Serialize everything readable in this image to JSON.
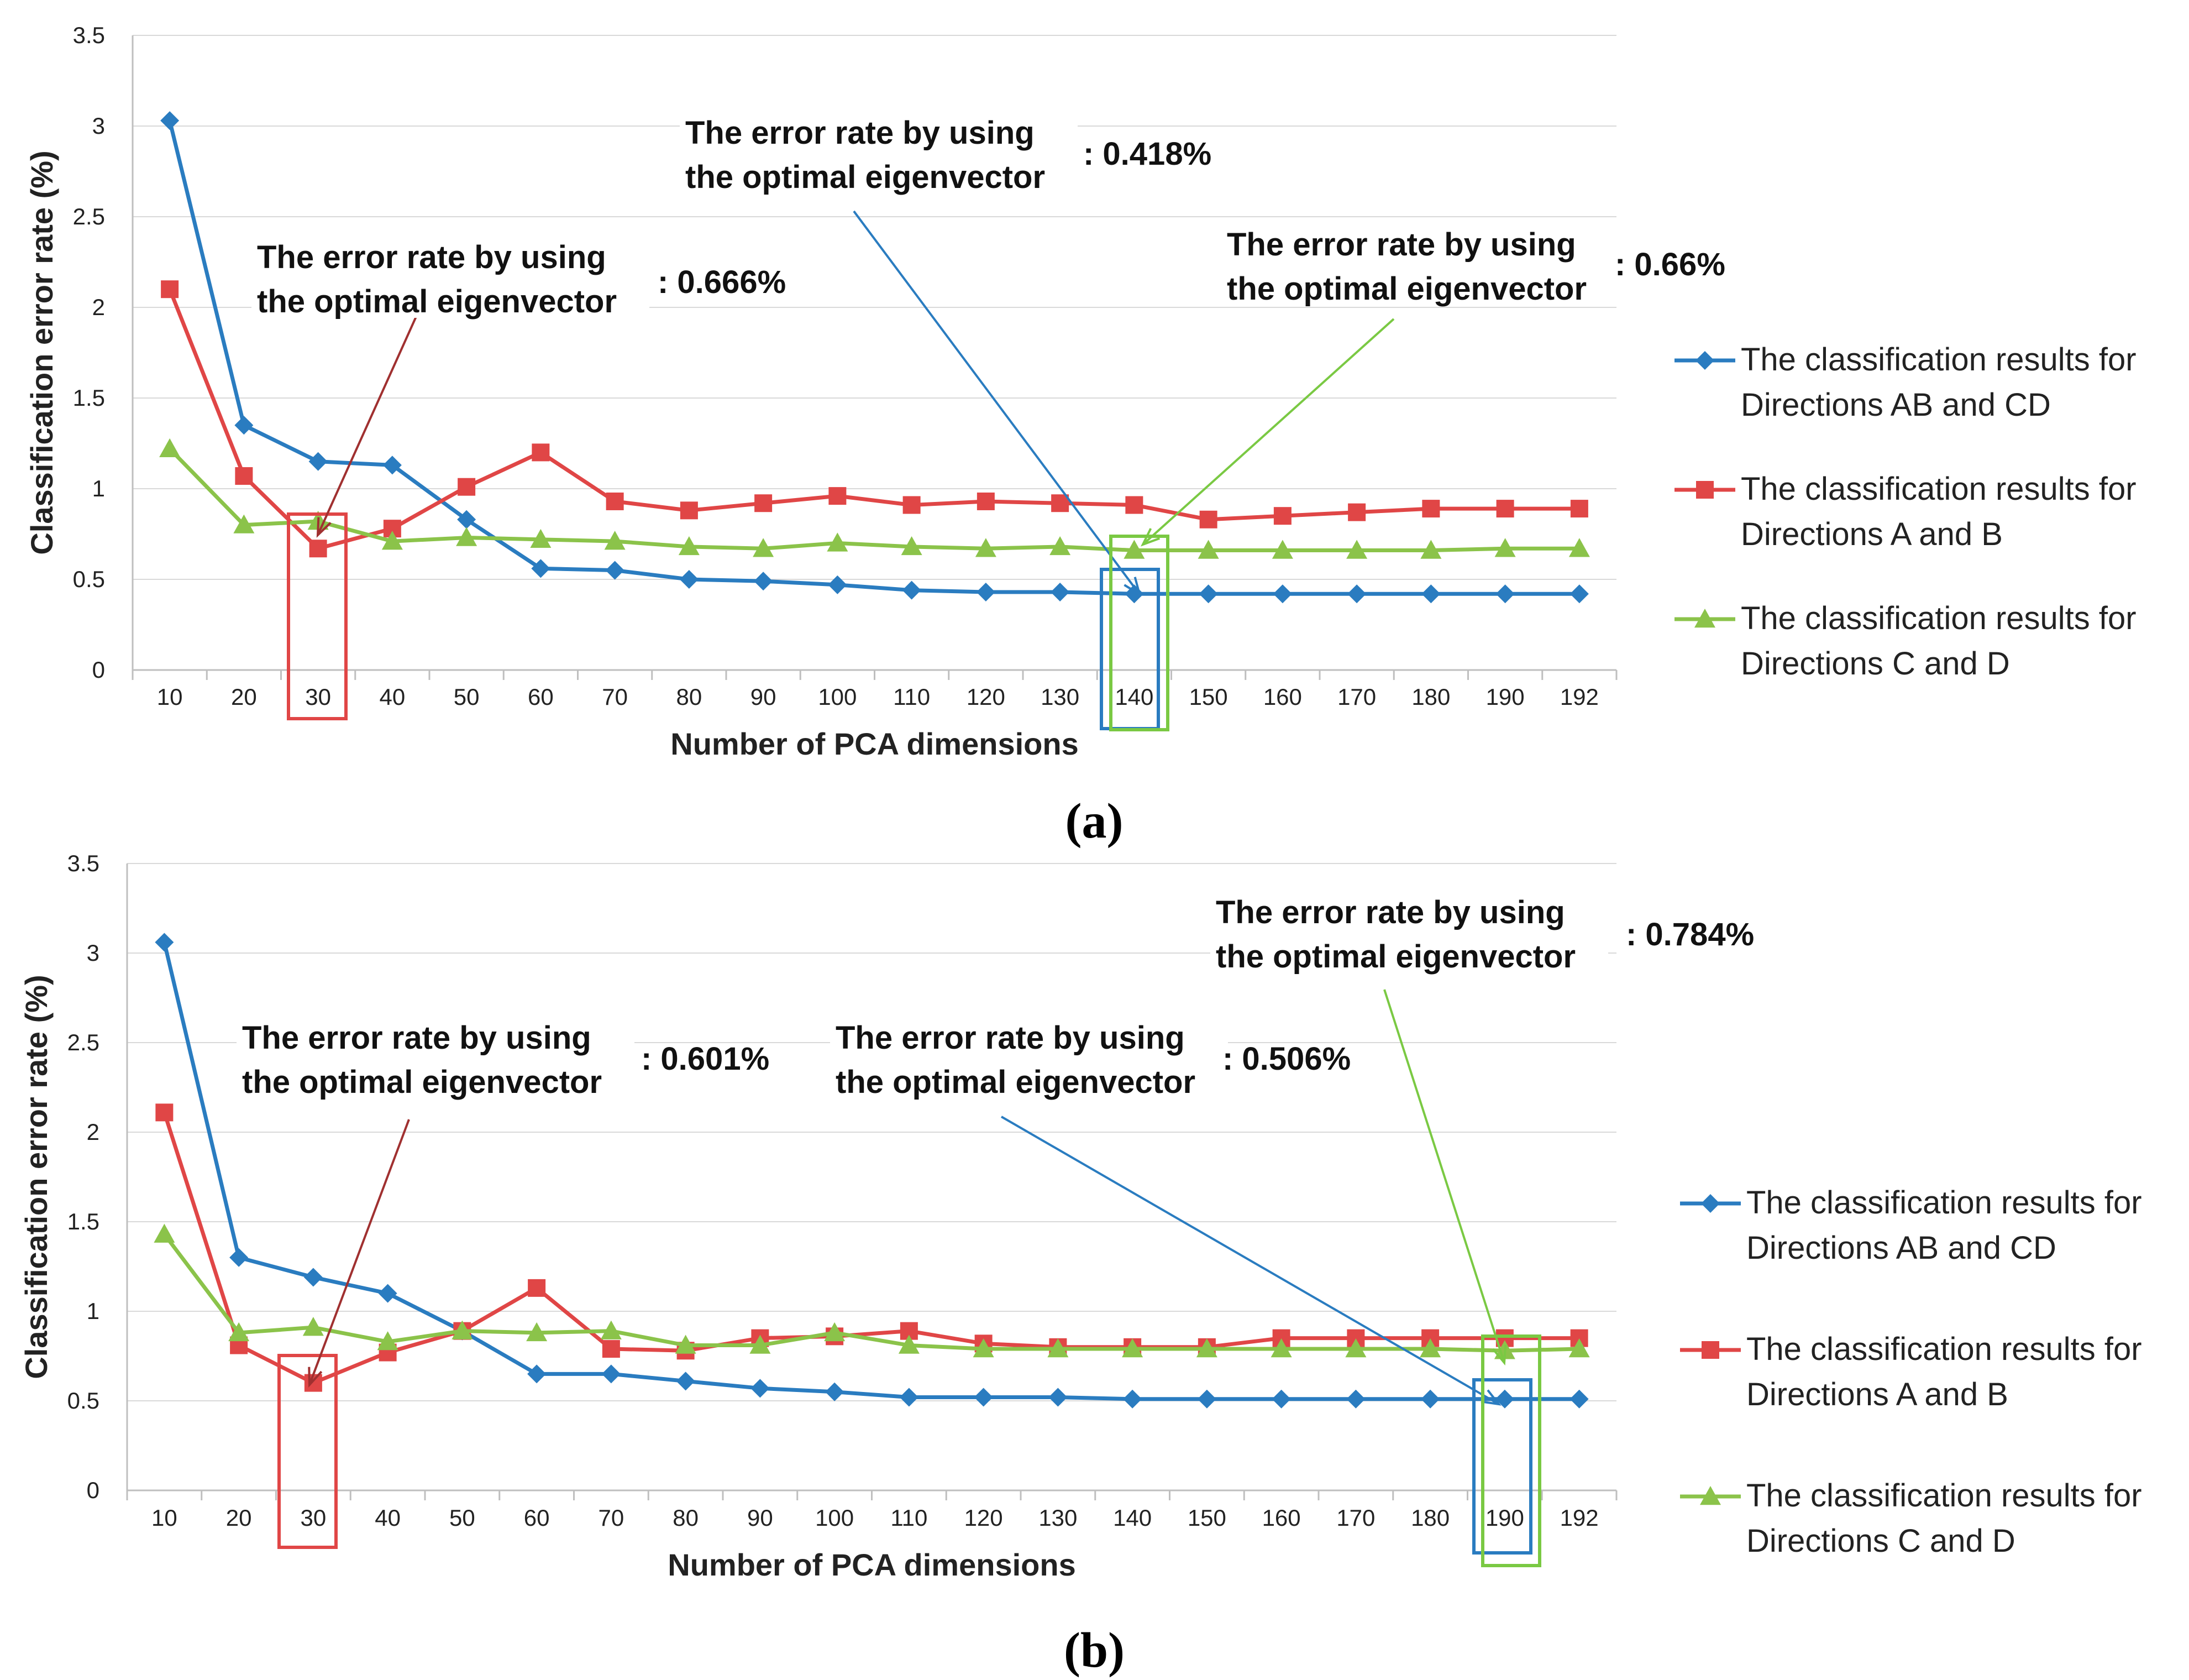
{
  "colors": {
    "blue": "#2a7cc0",
    "red": "#e04646",
    "green": "#8bc34a",
    "grid": "#d9d9d9",
    "axis": "#bfbfbf",
    "box_red": "#e04646",
    "box_blue": "#2a7cc0",
    "box_green": "#7ac943",
    "arrow_red": "#a03030"
  },
  "legend": [
    {
      "line1": "The classification results for",
      "line2": "Directions AB and CD",
      "series": "blue",
      "marker": "diamond"
    },
    {
      "line1": "The classification results for",
      "line2": "Directions A and B",
      "series": "red",
      "marker": "square"
    },
    {
      "line1": "The classification results for",
      "line2": "Directions C and D",
      "series": "green",
      "marker": "triangle"
    }
  ],
  "chart_data": [
    {
      "panel_label": "(a)",
      "type": "line",
      "xlabel": "Number of PCA dimensions",
      "ylabel": "Classification error rate (%)",
      "ylim": [
        0,
        3.5
      ],
      "yticks": [
        "0",
        "0.5",
        "1",
        "1.5",
        "2",
        "2.5",
        "3",
        "3.5"
      ],
      "grid": true,
      "legend_position": "right",
      "categories": [
        "10",
        "20",
        "30",
        "40",
        "50",
        "60",
        "70",
        "80",
        "90",
        "100",
        "110",
        "120",
        "130",
        "140",
        "150",
        "160",
        "170",
        "180",
        "190",
        "192"
      ],
      "series": [
        {
          "color": "blue",
          "marker": "diamond",
          "values": [
            3.03,
            1.35,
            1.15,
            1.13,
            0.83,
            0.56,
            0.55,
            0.5,
            0.49,
            0.47,
            0.44,
            0.43,
            0.43,
            0.42,
            0.42,
            0.42,
            0.42,
            0.42,
            0.42,
            0.42
          ]
        },
        {
          "color": "red",
          "marker": "square",
          "values": [
            2.1,
            1.07,
            0.67,
            0.78,
            1.01,
            1.2,
            0.93,
            0.88,
            0.92,
            0.96,
            0.91,
            0.93,
            0.92,
            0.91,
            0.83,
            0.85,
            0.87,
            0.89,
            0.89,
            0.89
          ]
        },
        {
          "color": "green",
          "marker": "triangle",
          "values": [
            1.22,
            0.8,
            0.82,
            0.71,
            0.73,
            0.72,
            0.71,
            0.68,
            0.67,
            0.7,
            0.68,
            0.67,
            0.68,
            0.66,
            0.66,
            0.66,
            0.66,
            0.66,
            0.67,
            0.67
          ]
        }
      ],
      "annotations": [
        {
          "line1": "The error rate by using",
          "line2": "the optimal eigenvector",
          "value": ": 0.666%",
          "color": "red",
          "target_category": "30"
        },
        {
          "line1": "The error rate by using",
          "line2": "the optimal eigenvector",
          "value": ": 0.418%",
          "color": "blue",
          "target_category": "140"
        },
        {
          "line1": "The error rate by using",
          "line2": "the optimal eigenvector",
          "value": ": 0.66%",
          "color": "green",
          "target_category": "140"
        }
      ]
    },
    {
      "panel_label": "(b)",
      "type": "line",
      "xlabel": "Number of PCA dimensions",
      "ylabel": "Classification error rate (%)",
      "ylim": [
        0,
        3.5
      ],
      "yticks": [
        "0",
        "0.5",
        "1",
        "1.5",
        "2",
        "2.5",
        "3",
        "3.5"
      ],
      "grid": true,
      "legend_position": "right",
      "categories": [
        "10",
        "20",
        "30",
        "40",
        "50",
        "60",
        "70",
        "80",
        "90",
        "100",
        "110",
        "120",
        "130",
        "140",
        "150",
        "160",
        "170",
        "180",
        "190",
        "192"
      ],
      "series": [
        {
          "color": "blue",
          "marker": "diamond",
          "values": [
            3.06,
            1.3,
            1.19,
            1.1,
            0.89,
            0.65,
            0.65,
            0.61,
            0.57,
            0.55,
            0.52,
            0.52,
            0.52,
            0.51,
            0.51,
            0.51,
            0.51,
            0.51,
            0.51,
            0.51
          ]
        },
        {
          "color": "red",
          "marker": "square",
          "values": [
            2.11,
            0.81,
            0.6,
            0.77,
            0.89,
            1.13,
            0.79,
            0.78,
            0.85,
            0.86,
            0.89,
            0.82,
            0.8,
            0.8,
            0.8,
            0.85,
            0.85,
            0.85,
            0.85,
            0.85
          ]
        },
        {
          "color": "green",
          "marker": "triangle",
          "values": [
            1.43,
            0.88,
            0.91,
            0.83,
            0.89,
            0.88,
            0.89,
            0.81,
            0.81,
            0.88,
            0.81,
            0.79,
            0.79,
            0.79,
            0.79,
            0.79,
            0.79,
            0.79,
            0.78,
            0.79
          ]
        }
      ],
      "annotations": [
        {
          "line1": "The error rate by using",
          "line2": "the optimal eigenvector",
          "value": ": 0.601%",
          "color": "red",
          "target_category": "30"
        },
        {
          "line1": "The error rate by using",
          "line2": "the optimal eigenvector",
          "value": ": 0.506%",
          "color": "blue",
          "target_category": "190"
        },
        {
          "line1": "The error rate by using",
          "line2": "the optimal eigenvector",
          "value": ": 0.784%",
          "color": "green",
          "target_category": "190"
        }
      ]
    }
  ]
}
